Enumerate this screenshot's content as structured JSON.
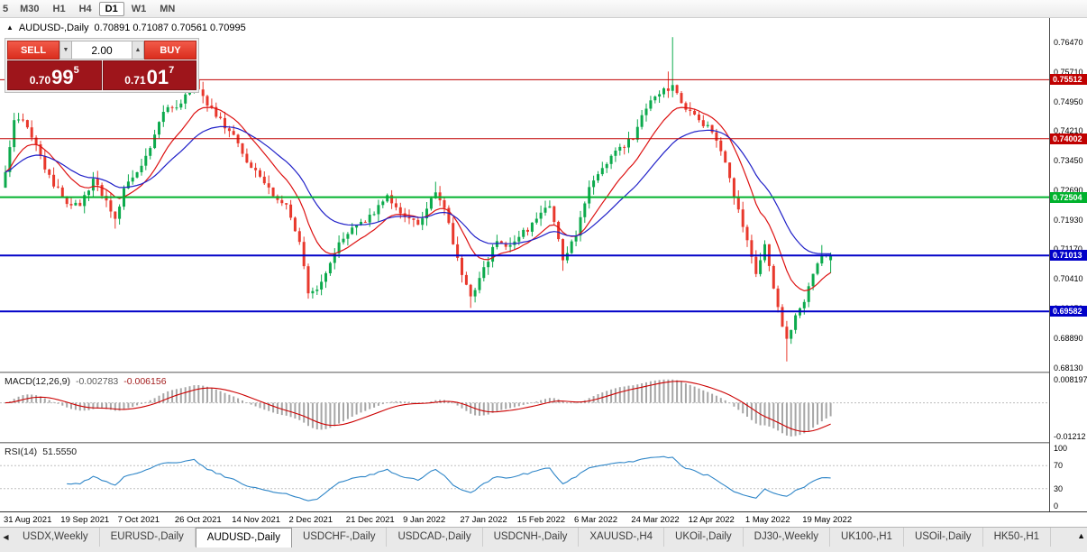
{
  "toolbar": {
    "timeframes": [
      "5",
      "M30",
      "H1",
      "H4",
      "D1",
      "W1",
      "MN"
    ],
    "active": "D1"
  },
  "chart": {
    "title": {
      "symbol": "AUDUSD-,Daily",
      "ohlc": "0.70891 0.71087 0.70561 0.70995"
    },
    "trade_panel": {
      "sell_label": "SELL",
      "buy_label": "BUY",
      "volume": "2.00",
      "sell_price": {
        "prefix": "0.70",
        "big": "99",
        "sup": "5"
      },
      "buy_price": {
        "prefix": "0.71",
        "big": "01",
        "sup": "7"
      }
    },
    "price_axis_ticks": [
      "0.76470",
      "0.75710",
      "0.74950",
      "0.74210",
      "0.73450",
      "0.72690",
      "0.71930",
      "0.71170",
      "0.70410",
      "0.69650",
      "0.68890",
      "0.68130"
    ]
  },
  "indicators": {
    "macd": {
      "label": "MACD(12,26,9)",
      "value_main": "-0.002783",
      "value_signal": "-0.006156"
    },
    "rsi": {
      "label": "RSI(14)",
      "value": "51.5550"
    }
  },
  "chart_data": [
    {
      "type": "candlestick",
      "title": "AUDUSD-,Daily",
      "n_bars": 189,
      "bars_per_x_label": 13,
      "x_labels": [
        "31 Aug 2021",
        "19 Sep 2021",
        "7 Oct 2021",
        "26 Oct 2021",
        "14 Nov 2021",
        "2 Dec 2021",
        "21 Dec 2021",
        "9 Jan 2022",
        "27 Jan 2022",
        "15 Feb 2022",
        "6 Mar 2022",
        "24 Mar 2022",
        "12 Apr 2022",
        "1 May 2022",
        "19 May 2022"
      ],
      "y_range": [
        0.6804,
        0.7709
      ],
      "close_anchors": [
        [
          0,
          0.7315
        ],
        [
          2,
          0.744
        ],
        [
          4,
          0.7455
        ],
        [
          7,
          0.7385
        ],
        [
          10,
          0.73
        ],
        [
          14,
          0.7235
        ],
        [
          17,
          0.7225
        ],
        [
          20,
          0.73
        ],
        [
          23,
          0.724
        ],
        [
          25,
          0.7195
        ],
        [
          27,
          0.727
        ],
        [
          30,
          0.7315
        ],
        [
          33,
          0.738
        ],
        [
          36,
          0.747
        ],
        [
          39,
          0.748
        ],
        [
          43,
          0.7545
        ],
        [
          45,
          0.7505
        ],
        [
          48,
          0.746
        ],
        [
          52,
          0.7405
        ],
        [
          55,
          0.7345
        ],
        [
          58,
          0.7295
        ],
        [
          61,
          0.7255
        ],
        [
          64,
          0.7225
        ],
        [
          67,
          0.7135
        ],
        [
          69,
          0.7005
        ],
        [
          71,
          0.701
        ],
        [
          74,
          0.7085
        ],
        [
          77,
          0.715
        ],
        [
          81,
          0.718
        ],
        [
          84,
          0.7215
        ],
        [
          87,
          0.725
        ],
        [
          91,
          0.7205
        ],
        [
          94,
          0.7185
        ],
        [
          96,
          0.7215
        ],
        [
          98,
          0.7265
        ],
        [
          100,
          0.723
        ],
        [
          103,
          0.709
        ],
        [
          106,
          0.6995
        ],
        [
          109,
          0.7065
        ],
        [
          112,
          0.714
        ],
        [
          115,
          0.7125
        ],
        [
          118,
          0.716
        ],
        [
          121,
          0.719
        ],
        [
          124,
          0.7235
        ],
        [
          127,
          0.709
        ],
        [
          130,
          0.716
        ],
        [
          133,
          0.727
        ],
        [
          136,
          0.732
        ],
        [
          139,
          0.7365
        ],
        [
          143,
          0.7405
        ],
        [
          146,
          0.748
        ],
        [
          149,
          0.7515
        ],
        [
          152,
          0.7535
        ],
        [
          155,
          0.748
        ],
        [
          158,
          0.7445
        ],
        [
          161,
          0.742
        ],
        [
          163,
          0.737
        ],
        [
          166,
          0.7255
        ],
        [
          169,
          0.7135
        ],
        [
          171,
          0.706
        ],
        [
          173,
          0.7125
        ],
        [
          176,
          0.6965
        ],
        [
          178,
          0.6885
        ],
        [
          180,
          0.6945
        ],
        [
          182,
          0.6985
        ],
        [
          184,
          0.7055
        ],
        [
          186,
          0.7105
        ],
        [
          188,
          0.70995
        ]
      ],
      "wick_overrides": [
        {
          "i": 25,
          "low": 0.717
        },
        {
          "i": 43,
          "high": 0.7557
        },
        {
          "i": 69,
          "low": 0.6993
        },
        {
          "i": 98,
          "high": 0.729
        },
        {
          "i": 106,
          "low": 0.6967
        },
        {
          "i": 127,
          "low": 0.7062
        },
        {
          "i": 151,
          "high": 0.7572
        },
        {
          "i": 152,
          "high": 0.766
        },
        {
          "i": 178,
          "low": 0.683
        },
        {
          "i": 186,
          "high": 0.7128
        }
      ],
      "last_ohlc": [
        0.70891,
        0.71087,
        0.70561,
        0.70995
      ],
      "levels": [
        {
          "price": 0.75512,
          "label": "0.75512",
          "color": "#c00000",
          "width": 1
        },
        {
          "price": 0.74002,
          "label": "0.74002",
          "color": "#c00000",
          "width": 1
        },
        {
          "price": 0.72504,
          "label": "0.72504",
          "color": "#00b22d",
          "width": 2
        },
        {
          "price": 0.71013,
          "label": "0.71013",
          "color": "#0000c8",
          "width": 2
        },
        {
          "price": 0.69582,
          "label": "0.69582",
          "color": "#0000c8",
          "width": 2
        }
      ],
      "overlays": [
        {
          "name": "ma-fast",
          "type": "ema",
          "period": 12,
          "color": "#dd1111"
        },
        {
          "name": "ma-slow",
          "type": "ema",
          "period": 26,
          "color": "#2020c8"
        }
      ]
    },
    {
      "type": "macd",
      "params": [
        12,
        26,
        9
      ],
      "y_range": [
        -0.014,
        0.0105
      ],
      "axis_ticks": [
        0.008197,
        -0.01212
      ],
      "current": [
        -0.002783,
        -0.006156
      ]
    },
    {
      "type": "rsi",
      "period": 14,
      "current": 51.555,
      "levels": [
        70,
        30
      ],
      "axis_ticks": [
        100,
        70,
        30,
        0
      ],
      "y_range": [
        0,
        100
      ]
    }
  ],
  "tabs": {
    "items": [
      "USDX,Weekly",
      "EURUSD-,Daily",
      "AUDUSD-,Daily",
      "USDCHF-,Daily",
      "USDCAD-,Daily",
      "USDCNH-,Daily",
      "XAUUSD-,H4",
      "UKOil-,Daily",
      "DJ30-,Weekly",
      "UK100-,H1",
      "USOil-,Daily",
      "HK50-,H1"
    ],
    "active_index": 2
  },
  "colors": {
    "candle_up": "#0caa4d",
    "candle_down": "#e8382c",
    "ma_fast": "#dd1111",
    "ma_slow": "#2020c8",
    "macd_hist": "#a6a6a6",
    "macd_signal": "#cc0000",
    "rsi_line": "#2f86c8"
  }
}
